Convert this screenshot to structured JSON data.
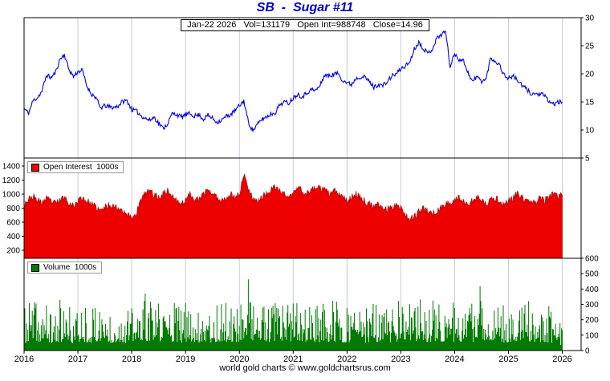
{
  "header": {
    "title": "SB  -  Sugar #11",
    "info": "Jan-22 2026   Vol=131179   Open Int=988748   Close=14.96"
  },
  "legends": {
    "open_interest": "Open Interest  1000s",
    "volume": "Volume  1000s"
  },
  "footer": {
    "credit": "world gold charts © www.goldchartsrus.com"
  },
  "chart_data": {
    "type": "line",
    "title": "SB - Sugar #11",
    "subtitle": "Jan-22 2026 Vol=131179 Open Int=988748 Close=14.96",
    "stats": {
      "date": "Jan-22 2026",
      "vol": 131179,
      "open_int": 988748,
      "close": 14.96
    },
    "x_start_year": 2016,
    "x_step": "monthly",
    "x_tick_labels": [
      "2016",
      "2017",
      "2018",
      "2019",
      "2020",
      "2021",
      "2022",
      "2023",
      "2024",
      "2025",
      "2026"
    ],
    "grid_color": "#c2cede",
    "legend_position": "top-left-of-panel",
    "panels": [
      {
        "name": "price",
        "label": "SB - Sugar #11 close price",
        "type": "line",
        "color": "#0000ee",
        "axis_side": "right",
        "ylim": [
          5,
          30
        ],
        "yticks": [
          5,
          10,
          15,
          20,
          25,
          30
        ],
        "values": [
          13.8,
          13.0,
          15.2,
          15.8,
          16.9,
          19.8,
          19.3,
          20.2,
          22.6,
          23.4,
          20.8,
          19.5,
          20.4,
          20.6,
          17.8,
          16.4,
          15.8,
          13.9,
          14.3,
          14.1,
          14.0,
          14.3,
          15.1,
          15.2,
          13.6,
          13.4,
          12.6,
          12.1,
          11.7,
          12.3,
          11.2,
          10.3,
          11.1,
          12.9,
          12.8,
          12.3,
          12.7,
          12.9,
          12.5,
          12.7,
          11.9,
          12.6,
          12.1,
          11.4,
          11.7,
          12.4,
          12.7,
          13.4,
          14.3,
          15.2,
          11.4,
          9.9,
          10.9,
          11.9,
          12.3,
          12.8,
          13.1,
          14.5,
          15.0,
          14.8,
          15.7,
          16.4,
          15.9,
          16.6,
          17.2,
          17.0,
          17.9,
          19.8,
          19.6,
          19.9,
          20.1,
          18.9,
          18.4,
          18.1,
          19.2,
          19.5,
          19.4,
          18.6,
          17.6,
          18.1,
          17.9,
          18.6,
          19.6,
          20.0,
          20.9,
          21.4,
          22.1,
          24.4,
          25.6,
          24.6,
          23.6,
          24.4,
          26.3,
          27.0,
          27.6,
          21.2,
          23.6,
          22.6,
          22.3,
          20.2,
          18.6,
          19.5,
          18.7,
          19.0,
          22.8,
          22.3,
          21.6,
          19.8,
          19.2,
          19.6,
          18.9,
          17.9,
          17.3,
          16.5,
          16.4,
          16.4,
          16.1,
          15.1,
          14.6,
          14.9,
          14.96
        ]
      },
      {
        "name": "open_interest",
        "label": "Open Interest 1000s",
        "type": "area",
        "color": "#ee0000",
        "axis_side": "left",
        "ylim": [
          86,
          1514
        ],
        "yticks": [
          200,
          400,
          600,
          800,
          1000,
          1200,
          1400
        ],
        "values": [
          870,
          920,
          960,
          905,
          880,
          930,
          900,
          865,
          910,
          955,
          885,
          820,
          905,
          950,
          900,
          855,
          810,
          760,
          805,
          850,
          825,
          800,
          775,
          705,
          665,
          730,
          905,
          1005,
          1055,
          985,
          950,
          1005,
          1050,
          975,
          905,
          850,
          905,
          1000,
          950,
          900,
          1005,
          1075,
          1000,
          950,
          905,
          950,
          1000,
          950,
          1005,
          1270,
          1090,
          945,
          900,
          950,
          1000,
          1050,
          1095,
          1050,
          1000,
          955,
          1000,
          1095,
          1050,
          1000,
          1050,
          1105,
          1075,
          1050,
          1000,
          1050,
          1000,
          950,
          905,
          950,
          1000,
          950,
          900,
          855,
          805,
          850,
          800,
          780,
          820,
          855,
          820,
          700,
          650,
          680,
          740,
          790,
          760,
          720,
          760,
          800,
          850,
          880,
          900,
          950,
          905,
          855,
          900,
          950,
          905,
          850,
          905,
          950,
          900,
          855,
          900,
          950,
          1000,
          950,
          905,
          855,
          900,
          950,
          905,
          950,
          1000,
          950,
          989
        ]
      },
      {
        "name": "volume",
        "label": "Volume 1000s",
        "type": "bar",
        "color": "#007a00",
        "axis_side": "right",
        "ylim": [
          0,
          600
        ],
        "yticks": [
          0,
          100,
          200,
          300,
          400,
          500,
          600
        ],
        "values": [
          260,
          310,
          385,
          285,
          325,
          300,
          265,
          285,
          325,
          300,
          285,
          260,
          285,
          325,
          300,
          265,
          305,
          345,
          285,
          265,
          285,
          305,
          285,
          260,
          305,
          285,
          325,
          365,
          305,
          345,
          325,
          305,
          345,
          325,
          305,
          285,
          305,
          325,
          305,
          285,
          345,
          305,
          285,
          305,
          325,
          305,
          325,
          285,
          325,
          430,
          520,
          365,
          305,
          325,
          305,
          285,
          325,
          345,
          305,
          325,
          305,
          345,
          325,
          305,
          325,
          305,
          285,
          325,
          305,
          325,
          305,
          285,
          305,
          285,
          325,
          305,
          285,
          305,
          325,
          285,
          305,
          285,
          305,
          325,
          345,
          325,
          305,
          345,
          325,
          365,
          305,
          325,
          345,
          325,
          305,
          285,
          325,
          305,
          345,
          325,
          305,
          325,
          450,
          325,
          345,
          325,
          305,
          285,
          305,
          325,
          305,
          285,
          305,
          325,
          305,
          285,
          305,
          285,
          265,
          245,
          131
        ]
      }
    ]
  }
}
